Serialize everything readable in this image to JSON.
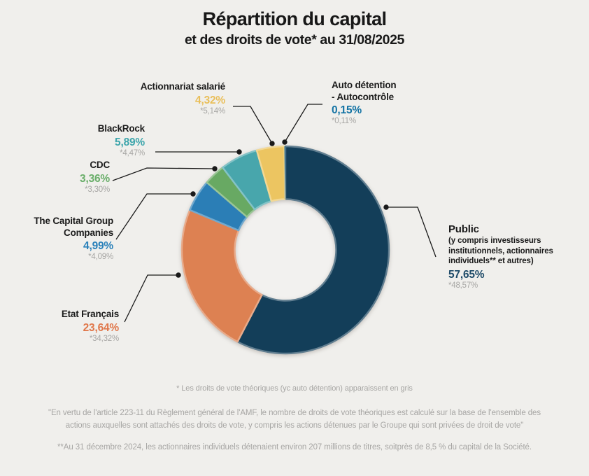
{
  "header": {
    "title": "Répartition du capital",
    "subtitle": "et des droits de vote* au 31/08/2025"
  },
  "chart_data": {
    "type": "pie",
    "subtype": "donut",
    "title": "Répartition du capital et des droits de vote au 31/08/2025",
    "units": "%",
    "start_angle_deg": 0,
    "direction": "clockwise",
    "note": "Les valeurs grises étoilées correspondent aux droits de vote théoriques",
    "segments": [
      {
        "key": "public",
        "label": "Public (y compris investisseurs institutionnels, actionnaires individuels et autres)",
        "capital_pct": 57.65,
        "voting_rights_pct": 48.57,
        "color": "#133e59"
      },
      {
        "key": "etat_francais",
        "label": "Etat Français",
        "capital_pct": 23.64,
        "voting_rights_pct": 34.32,
        "color": "#dd8152"
      },
      {
        "key": "capital_group",
        "label": "The Capital Group Companies",
        "capital_pct": 4.99,
        "voting_rights_pct": 4.09,
        "color": "#2b7eb6"
      },
      {
        "key": "cdc",
        "label": "CDC",
        "capital_pct": 3.36,
        "voting_rights_pct": 3.3,
        "color": "#68a963"
      },
      {
        "key": "blackrock",
        "label": "BlackRock",
        "capital_pct": 5.89,
        "voting_rights_pct": 4.47,
        "color": "#48a6ac"
      },
      {
        "key": "actionnariat_salarie",
        "label": "Actionnariat salarié",
        "capital_pct": 4.32,
        "voting_rights_pct": 5.14,
        "color": "#ecc561"
      },
      {
        "key": "auto_detention",
        "label": "Auto détention - Autocontrôle",
        "capital_pct": 0.15,
        "voting_rights_pct": 0.11,
        "color": "#11618b"
      }
    ]
  },
  "callouts": {
    "actionnariat": {
      "name": "Actionnariat salarié",
      "value": "4,32%",
      "theoretical": "*5,14%",
      "color": "#e9bf5b"
    },
    "auto": {
      "name_line1": "Auto détention",
      "name_line2": "- Autocontrôle",
      "value": "0,15%",
      "theoretical": "*0,11%",
      "color": "#1373a4"
    },
    "blackrock": {
      "name": "BlackRock",
      "value": "5,89%",
      "theoretical": "*4,47%",
      "color": "#3fa6ac"
    },
    "cdc": {
      "name": "CDC",
      "value": "3,36%",
      "theoretical": "*3,30%",
      "color": "#69ae69"
    },
    "capital_group": {
      "name_line1": "The Capital Group",
      "name_line2": "Companies",
      "value": "4,99%",
      "theoretical": "*4,09%",
      "color": "#2a81ba"
    },
    "etat": {
      "name": "Etat Français",
      "value": "23,64%",
      "theoretical": "*34,32%",
      "color": "#e0774a"
    },
    "public": {
      "name": "Public",
      "desc_line1": "(y compris investisseurs",
      "desc_line2": "institutionnels, actionnaires",
      "desc_line3": "individuels** et autres)",
      "value": "57,65%",
      "theoretical": "*48,57%",
      "color": "#1d4a68"
    }
  },
  "footnotes": {
    "note1": "* Les droits de vote théoriques (yc auto détention) apparaissent en gris",
    "note2_line1": "\"En vertu de l'article 223-11 du Règlement général de l'AMF, le nombre de droits de vote théoriques est calculé sur la base de l'ensemble des",
    "note2_line2": "actions auxquelles sont attachés des droits de vote, y compris les actions détenues par le Groupe qui sont privées de droit de vote\"",
    "note3": "**Au 31 décembre 2024, les actionnaires individuels détenaient environ 207 millions de titres, soitprès de 8,5 % du capital de la Société."
  }
}
